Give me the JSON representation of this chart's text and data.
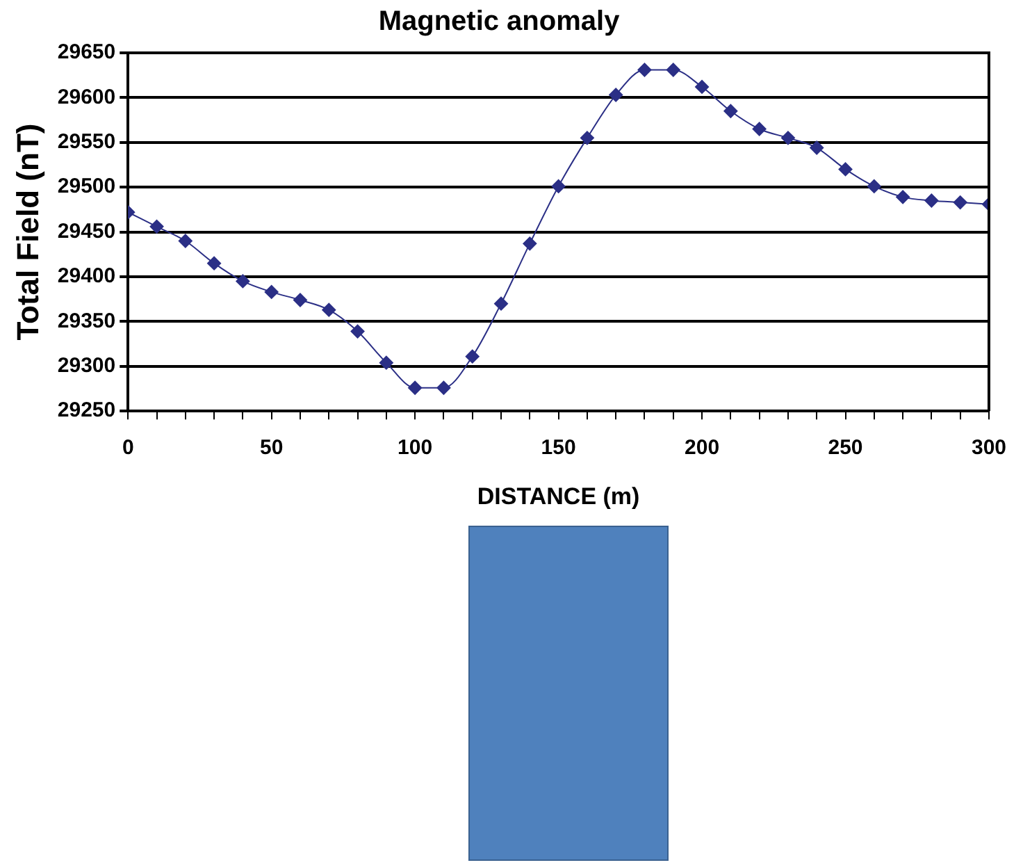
{
  "chart_data": {
    "type": "line",
    "title": "Magnetic anomaly",
    "xlabel": "DISTANCE (m)",
    "ylabel": "Total Field (nT)",
    "x": [
      0,
      10,
      20,
      30,
      40,
      50,
      60,
      70,
      80,
      90,
      100,
      110,
      120,
      130,
      140,
      150,
      160,
      170,
      180,
      190,
      200,
      210,
      220,
      230,
      240,
      250,
      260,
      270,
      280,
      290,
      300
    ],
    "series": [
      {
        "color": "#2b2f86",
        "values": [
          29472,
          29456,
          29440,
          29415,
          29395,
          29383,
          29374,
          29363,
          29339,
          29304,
          29276,
          29276,
          29311,
          29370,
          29437,
          29501,
          29555,
          29603,
          29631,
          29631,
          29612,
          29585,
          29565,
          29555,
          29544,
          29520,
          29501,
          29489,
          29485,
          29483,
          29481
        ]
      }
    ],
    "xlim": [
      0,
      300
    ],
    "xticks": [
      0,
      {
        "value": 10,
        "label": null
      },
      {
        "value": 20,
        "label": null
      },
      {
        "value": 30,
        "label": null
      },
      {
        "value": 40,
        "label": null
      },
      50,
      {
        "value": 60,
        "label": null
      },
      {
        "value": 70,
        "label": null
      },
      {
        "value": 80,
        "label": null
      },
      {
        "value": 90,
        "label": null
      },
      100,
      {
        "value": 110,
        "label": null
      },
      {
        "value": 120,
        "label": null
      },
      {
        "value": 130,
        "label": null
      },
      {
        "value": 140,
        "label": null
      },
      150,
      {
        "value": 160,
        "label": null
      },
      {
        "value": 170,
        "label": null
      },
      {
        "value": 180,
        "label": null
      },
      {
        "value": 190,
        "label": null
      },
      200,
      {
        "value": 210,
        "label": null
      },
      {
        "value": 220,
        "label": null
      },
      {
        "value": 230,
        "label": null
      },
      {
        "value": 240,
        "label": null
      },
      250,
      {
        "value": 260,
        "label": null
      },
      {
        "value": 270,
        "label": null
      },
      {
        "value": 280,
        "label": null
      },
      {
        "value": 290,
        "label": null
      },
      300
    ],
    "ylim": [
      29250,
      29650
    ],
    "yticks": [
      29250,
      29300,
      29350,
      29400,
      29450,
      29500,
      29550,
      29600,
      29650
    ],
    "grid": "y",
    "marker": "diamond",
    "line_style": "solid"
  }
}
